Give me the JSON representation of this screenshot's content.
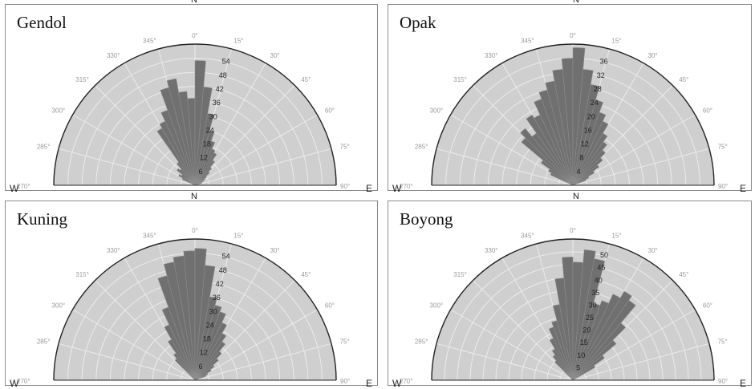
{
  "chart_data": [
    {
      "type": "polar-bar",
      "title": "Gendol",
      "compass": {
        "n": "N",
        "w": "W",
        "e": "E"
      },
      "angle_labels": [
        "270°",
        "285°",
        "300°",
        "315°",
        "330°",
        "345°",
        "0°",
        "15°",
        "30°",
        "45°",
        "60°",
        "75°",
        "90°"
      ],
      "radial_labels": [
        "6",
        "12",
        "18",
        "24",
        "30",
        "36",
        "42",
        "48",
        "54"
      ],
      "radial_max": 60,
      "bins_deg": [
        [
          -65,
          -60
        ],
        [
          -60,
          -55
        ],
        [
          -55,
          -50
        ],
        [
          -50,
          -45
        ],
        [
          -45,
          -40
        ],
        [
          -40,
          -35
        ],
        [
          -35,
          -30
        ],
        [
          -30,
          -25
        ],
        [
          -25,
          -20
        ],
        [
          -20,
          -15
        ],
        [
          -15,
          -10
        ],
        [
          -10,
          -5
        ],
        [
          -5,
          0
        ],
        [
          0,
          5
        ],
        [
          5,
          10
        ],
        [
          10,
          15
        ],
        [
          15,
          20
        ],
        [
          20,
          25
        ],
        [
          25,
          30
        ],
        [
          30,
          35
        ],
        [
          35,
          40
        ],
        [
          40,
          45
        ],
        [
          45,
          50
        ],
        [
          50,
          55
        ],
        [
          55,
          60
        ],
        [
          60,
          65
        ],
        [
          65,
          70
        ],
        [
          70,
          75
        ]
      ],
      "values": [
        6,
        8,
        7,
        10,
        9,
        12,
        28,
        30,
        34,
        43,
        46,
        40,
        37,
        53,
        42,
        31,
        24,
        20,
        17,
        16,
        13,
        10,
        8,
        6,
        5,
        4,
        3,
        3
      ]
    },
    {
      "type": "polar-bar",
      "title": "Opak",
      "compass": {
        "n": "N",
        "w": "W",
        "e": "E"
      },
      "angle_labels": [
        "270°",
        "285°",
        "300°",
        "315°",
        "330°",
        "345°",
        "0°",
        "15°",
        "30°",
        "45°",
        "60°",
        "75°",
        "90°"
      ],
      "radial_labels": [
        "4",
        "8",
        "12",
        "16",
        "20",
        "24",
        "28",
        "32",
        "36"
      ],
      "radial_max": 40,
      "bins_deg": [
        [
          -65,
          -60
        ],
        [
          -60,
          -55
        ],
        [
          -55,
          -50
        ],
        [
          -50,
          -45
        ],
        [
          -45,
          -40
        ],
        [
          -40,
          -35
        ],
        [
          -35,
          -30
        ],
        [
          -30,
          -25
        ],
        [
          -25,
          -20
        ],
        [
          -20,
          -15
        ],
        [
          -15,
          -10
        ],
        [
          -10,
          -5
        ],
        [
          -5,
          0
        ],
        [
          0,
          5
        ],
        [
          5,
          10
        ],
        [
          10,
          15
        ],
        [
          15,
          20
        ],
        [
          20,
          25
        ],
        [
          25,
          30
        ],
        [
          30,
          35
        ],
        [
          35,
          40
        ],
        [
          40,
          45
        ],
        [
          45,
          50
        ],
        [
          50,
          55
        ],
        [
          55,
          60
        ],
        [
          60,
          65
        ],
        [
          65,
          70
        ]
      ],
      "values": [
        7,
        8,
        11,
        19,
        21,
        18,
        23,
        22,
        26,
        28,
        30,
        33,
        36,
        39,
        33,
        29,
        25,
        22,
        20,
        17,
        15,
        13,
        11,
        9,
        7,
        5,
        4
      ]
    },
    {
      "type": "polar-bar",
      "title": "Kuning",
      "compass": {
        "n": "N",
        "w": "W",
        "e": "E"
      },
      "angle_labels": [
        "270°",
        "285°",
        "300°",
        "315°",
        "330°",
        "345°",
        "0°",
        "15°",
        "30°",
        "45°",
        "60°",
        "75°",
        "90°"
      ],
      "radial_labels": [
        "6",
        "12",
        "18",
        "24",
        "30",
        "36",
        "42",
        "48",
        "54"
      ],
      "radial_max": 60,
      "bins_deg": [
        [
          -45,
          -40
        ],
        [
          -40,
          -35
        ],
        [
          -35,
          -30
        ],
        [
          -30,
          -25
        ],
        [
          -25,
          -20
        ],
        [
          -20,
          -15
        ],
        [
          -15,
          -10
        ],
        [
          -10,
          -5
        ],
        [
          -5,
          0
        ],
        [
          0,
          5
        ],
        [
          5,
          10
        ],
        [
          10,
          15
        ],
        [
          15,
          20
        ],
        [
          20,
          25
        ],
        [
          25,
          30
        ],
        [
          30,
          35
        ],
        [
          35,
          40
        ],
        [
          40,
          45
        ],
        [
          45,
          50
        ],
        [
          50,
          55
        ],
        [
          55,
          60
        ],
        [
          60,
          65
        ],
        [
          65,
          70
        ]
      ],
      "values": [
        12,
        14,
        20,
        26,
        33,
        46,
        51,
        53,
        55,
        56,
        49,
        36,
        33,
        31,
        27,
        23,
        20,
        16,
        13,
        10,
        8,
        6,
        5
      ]
    },
    {
      "type": "polar-bar",
      "title": "Boyong",
      "compass": {
        "n": "N",
        "w": "W",
        "e": "E"
      },
      "angle_labels": [
        "270°",
        "285°",
        "300°",
        "315°",
        "330°",
        "345°",
        "0°",
        "15°",
        "30°",
        "45°",
        "60°",
        "75°",
        "90°"
      ],
      "radial_labels": [
        "5",
        "10",
        "15",
        "20",
        "25",
        "30",
        "35",
        "40",
        "45",
        "50"
      ],
      "radial_max": 55,
      "bins_deg": [
        [
          -45,
          -40
        ],
        [
          -40,
          -35
        ],
        [
          -35,
          -30
        ],
        [
          -30,
          -25
        ],
        [
          -25,
          -20
        ],
        [
          -20,
          -15
        ],
        [
          -15,
          -10
        ],
        [
          -10,
          -5
        ],
        [
          -5,
          0
        ],
        [
          0,
          5
        ],
        [
          5,
          10
        ],
        [
          10,
          15
        ],
        [
          15,
          20
        ],
        [
          20,
          25
        ],
        [
          25,
          30
        ],
        [
          30,
          35
        ],
        [
          35,
          40
        ],
        [
          40,
          45
        ],
        [
          45,
          50
        ],
        [
          50,
          55
        ],
        [
          55,
          60
        ]
      ],
      "values": [
        10,
        12,
        14,
        18,
        22,
        24,
        30,
        40,
        48,
        46,
        51,
        48,
        31,
        33,
        37,
        40,
        38,
        29,
        22,
        15,
        10
      ]
    }
  ]
}
